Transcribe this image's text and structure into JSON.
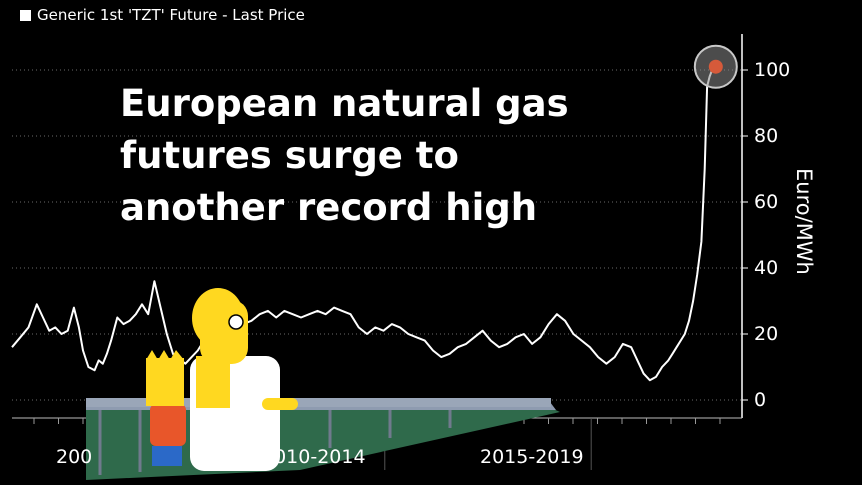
{
  "legend": {
    "label": "Generic 1st 'TZT' Future - Last Price",
    "color": "#ffffff"
  },
  "headline": {
    "lines": [
      "European natural gas",
      "futures surge to",
      "another record high"
    ]
  },
  "cartoon": {
    "description_name": "homer-and-bart-simpson-cartoon",
    "highlight": "circled-latest-point"
  },
  "chart_data": {
    "type": "line",
    "title": "European natural gas futures surge to another record high",
    "ylabel": "Euro/MWh",
    "ylim": [
      -5,
      110
    ],
    "yticks": [
      0,
      20,
      40,
      60,
      80,
      100
    ],
    "x_period_labels": [
      "2005-2009",
      "2010-2014",
      "2015-2019"
    ],
    "x_period_labels_visible": [
      "200",
      "2010-2014",
      "2015-2019"
    ],
    "xlim": [
      2005.0,
      2022.2
    ],
    "grid": "dotted-horizontal",
    "line_color": "#ffffff",
    "series": [
      {
        "name": "Generic 1st 'TZT' Future - Last Price",
        "x": [
          2005.0,
          2005.2,
          2005.4,
          2005.6,
          2005.75,
          2005.9,
          2006.05,
          2006.2,
          2006.35,
          2006.5,
          2006.62,
          2006.72,
          2006.85,
          2007.0,
          2007.1,
          2007.2,
          2007.3,
          2007.4,
          2007.55,
          2007.7,
          2007.85,
          2008.0,
          2008.15,
          2008.3,
          2008.45,
          2008.6,
          2008.75,
          2008.9,
          2009.0,
          2009.1,
          2009.2,
          2009.35,
          2009.5,
          2009.65,
          2009.8,
          2010.0,
          2010.2,
          2010.4,
          2010.6,
          2010.8,
          2011.0,
          2011.2,
          2011.4,
          2011.6,
          2011.8,
          2012.0,
          2012.2,
          2012.4,
          2012.6,
          2012.8,
          2013.0,
          2013.2,
          2013.4,
          2013.6,
          2013.8,
          2014.0,
          2014.2,
          2014.4,
          2014.6,
          2014.8,
          2015.0,
          2015.2,
          2015.4,
          2015.6,
          2015.8,
          2016.0,
          2016.2,
          2016.4,
          2016.6,
          2016.8,
          2017.0,
          2017.2,
          2017.4,
          2017.6,
          2017.8,
          2018.0,
          2018.2,
          2018.4,
          2018.6,
          2018.8,
          2019.0,
          2019.2,
          2019.4,
          2019.6,
          2019.8,
          2020.0,
          2020.15,
          2020.3,
          2020.45,
          2020.6,
          2020.75,
          2020.9,
          2021.0,
          2021.1,
          2021.2,
          2021.3,
          2021.4,
          2021.5,
          2021.6,
          2021.7,
          2021.78,
          2021.84,
          2021.9,
          2021.96,
          2022.05
        ],
        "values": [
          16,
          19,
          22,
          29,
          25,
          21,
          22,
          20,
          21,
          28,
          22,
          15,
          10,
          9,
          12,
          11,
          14,
          18,
          25,
          23,
          24,
          26,
          29,
          26,
          36,
          28,
          20,
          14,
          12,
          12,
          11,
          13,
          15,
          18,
          19,
          21,
          23,
          24,
          23,
          24,
          26,
          27,
          25,
          27,
          26,
          25,
          26,
          27,
          26,
          28,
          27,
          26,
          22,
          20,
          22,
          21,
          23,
          22,
          20,
          19,
          18,
          15,
          13,
          14,
          16,
          17,
          19,
          21,
          18,
          16,
          17,
          19,
          20,
          17,
          19,
          23,
          26,
          24,
          20,
          18,
          16,
          13,
          11,
          13,
          17,
          16,
          12,
          8,
          6,
          7,
          10,
          12,
          14,
          16,
          18,
          20,
          24,
          30,
          38,
          48,
          70,
          95,
          98,
          100,
          101
        ]
      }
    ],
    "annotations": [
      {
        "type": "circle",
        "x": 2022.05,
        "y": 101,
        "meaning": "latest record high"
      }
    ]
  }
}
